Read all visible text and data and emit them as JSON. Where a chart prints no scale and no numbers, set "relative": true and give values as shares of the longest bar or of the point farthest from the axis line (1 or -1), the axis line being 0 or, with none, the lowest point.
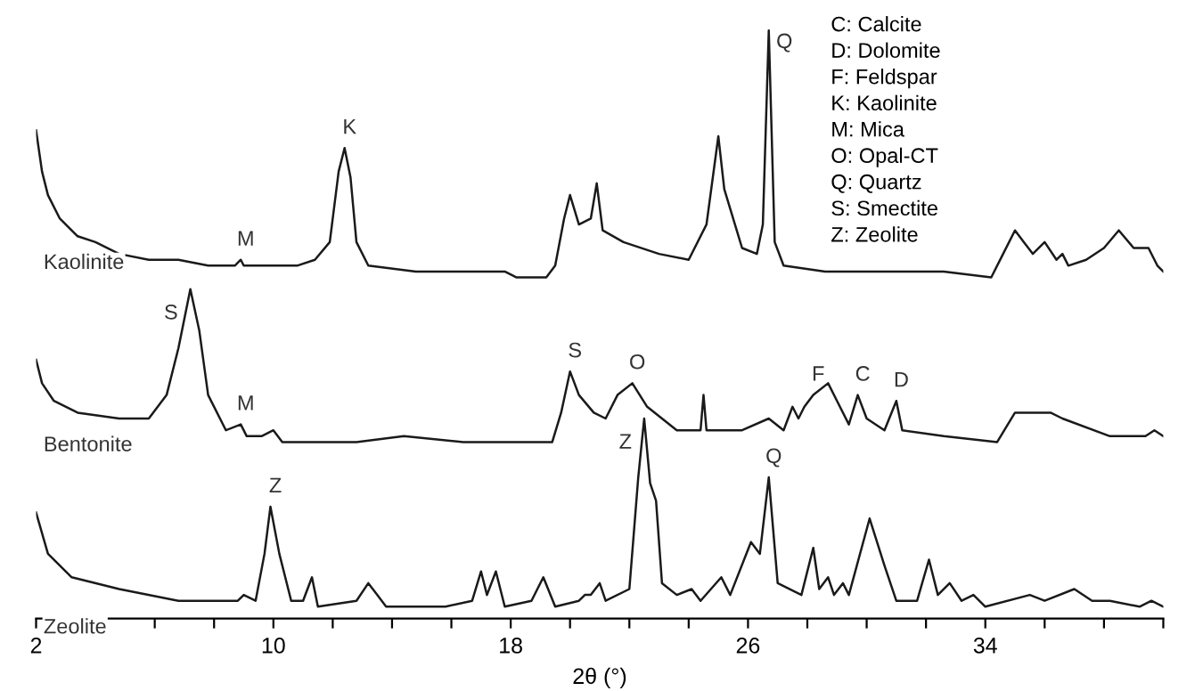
{
  "chart_data": {
    "type": "line",
    "relative": true,
    "xlabel": "2θ (°)",
    "tick_labels": "x",
    "grid": false,
    "legend": false,
    "marker": "none",
    "line_style": "solid",
    "xlim": [
      2,
      40
    ],
    "xticks": [
      2,
      {
        "value": 4,
        "label": null
      },
      {
        "value": 6,
        "label": null
      },
      {
        "value": 8,
        "label": null
      },
      10,
      {
        "value": 12,
        "label": null
      },
      {
        "value": 14,
        "label": null
      },
      {
        "value": 16,
        "label": null
      },
      18,
      {
        "value": 20,
        "label": null
      },
      {
        "value": 22,
        "label": null
      },
      {
        "value": 24,
        "label": null
      },
      26,
      {
        "value": 28,
        "label": null
      },
      {
        "value": 30,
        "label": null
      },
      {
        "value": 32,
        "label": null
      },
      34,
      {
        "value": 36,
        "label": null
      },
      {
        "value": 38,
        "label": null
      },
      {
        "value": 40,
        "label": null
      }
    ],
    "series": [
      {
        "name": "Kaolinite",
        "color": "#1a1a1a",
        "x": [
          2.0,
          2.2,
          2.4,
          2.8,
          3.4,
          4.0,
          4.8,
          5.8,
          6.8,
          7.8,
          8.7,
          8.9,
          9.0,
          9.8,
          10.8,
          11.4,
          11.9,
          12.2,
          12.4,
          12.6,
          12.8,
          13.2,
          14.8,
          16.7,
          17.2,
          17.8,
          18.2,
          19.2,
          19.5,
          19.8,
          20.0,
          20.3,
          20.7,
          20.9,
          21.1,
          21.8,
          23.0,
          24.0,
          24.6,
          25.0,
          25.2,
          25.8,
          26.3,
          26.5,
          26.7,
          26.9,
          27.2,
          28.6,
          30.6,
          32.6,
          34.2,
          34.6,
          35.0,
          35.3,
          35.6,
          36.0,
          36.4,
          36.6,
          36.8,
          37.4,
          38.0,
          38.5,
          39.0,
          39.5,
          39.8,
          40.0
        ],
        "values": [
          0.83,
          0.76,
          0.72,
          0.68,
          0.65,
          0.64,
          0.62,
          0.61,
          0.61,
          0.6,
          0.6,
          0.61,
          0.6,
          0.6,
          0.6,
          0.61,
          0.64,
          0.76,
          0.8,
          0.75,
          0.64,
          0.6,
          0.59,
          0.59,
          0.59,
          0.59,
          0.58,
          0.58,
          0.6,
          0.68,
          0.72,
          0.67,
          0.68,
          0.74,
          0.66,
          0.64,
          0.62,
          0.61,
          0.67,
          0.82,
          0.73,
          0.63,
          0.62,
          0.67,
          1.0,
          0.64,
          0.6,
          0.59,
          0.59,
          0.59,
          0.58,
          0.62,
          0.66,
          0.64,
          0.62,
          0.64,
          0.61,
          0.62,
          0.6,
          0.61,
          0.63,
          0.66,
          0.63,
          0.63,
          0.6,
          0.59
        ]
      },
      {
        "name": "Bentonite",
        "color": "#1a1a1a",
        "x": [
          2.0,
          2.2,
          2.6,
          3.4,
          4.8,
          5.8,
          6.4,
          6.8,
          7.2,
          7.5,
          7.8,
          8.4,
          8.9,
          9.1,
          9.6,
          10.0,
          10.3,
          11.4,
          12.8,
          14.4,
          16.4,
          17.8,
          19.4,
          19.7,
          20.0,
          20.3,
          20.8,
          21.2,
          21.6,
          22.1,
          22.6,
          23.6,
          24.4,
          24.5,
          24.6,
          25.8,
          26.7,
          27.2,
          27.5,
          27.7,
          27.9,
          28.2,
          28.7,
          29.0,
          29.4,
          29.7,
          30.0,
          30.6,
          31.0,
          31.2,
          32.6,
          34.4,
          35.0,
          36.2,
          36.6,
          38.2,
          39.4,
          39.7,
          40.0
        ],
        "values": [
          0.44,
          0.4,
          0.37,
          0.35,
          0.34,
          0.34,
          0.38,
          0.46,
          0.56,
          0.49,
          0.38,
          0.32,
          0.33,
          0.31,
          0.31,
          0.32,
          0.3,
          0.3,
          0.3,
          0.31,
          0.3,
          0.3,
          0.3,
          0.35,
          0.42,
          0.38,
          0.35,
          0.34,
          0.38,
          0.4,
          0.36,
          0.32,
          0.32,
          0.38,
          0.32,
          0.32,
          0.34,
          0.32,
          0.36,
          0.34,
          0.36,
          0.38,
          0.4,
          0.37,
          0.33,
          0.38,
          0.34,
          0.32,
          0.37,
          0.32,
          0.31,
          0.3,
          0.35,
          0.35,
          0.34,
          0.31,
          0.31,
          0.32,
          0.31
        ]
      },
      {
        "name": "Zeolite",
        "color": "#1a1a1a",
        "x": [
          2.0,
          2.4,
          3.2,
          4.8,
          6.8,
          8.8,
          9.0,
          9.4,
          9.7,
          9.9,
          10.2,
          10.6,
          11.0,
          11.3,
          11.5,
          12.8,
          13.2,
          13.5,
          13.8,
          15.8,
          16.7,
          17.0,
          17.2,
          17.5,
          17.8,
          18.7,
          19.1,
          19.5,
          20.3,
          20.5,
          20.7,
          21.0,
          21.2,
          22.0,
          22.3,
          22.5,
          22.7,
          22.9,
          23.1,
          23.6,
          24.1,
          24.4,
          25.1,
          25.4,
          26.1,
          26.4,
          26.7,
          27.0,
          27.8,
          28.2,
          28.4,
          28.7,
          28.9,
          29.2,
          29.4,
          30.1,
          30.6,
          31.0,
          31.7,
          32.1,
          32.4,
          32.8,
          33.2,
          33.6,
          34.0,
          35.5,
          36.0,
          37.0,
          37.6,
          38.2,
          39.2,
          39.6,
          40.0
        ],
        "values": [
          0.18,
          0.11,
          0.07,
          0.05,
          0.03,
          0.03,
          0.04,
          0.03,
          0.11,
          0.19,
          0.11,
          0.03,
          0.03,
          0.07,
          0.02,
          0.03,
          0.06,
          0.04,
          0.02,
          0.02,
          0.03,
          0.08,
          0.04,
          0.08,
          0.02,
          0.03,
          0.07,
          0.02,
          0.03,
          0.04,
          0.04,
          0.06,
          0.03,
          0.05,
          0.24,
          0.34,
          0.23,
          0.2,
          0.06,
          0.04,
          0.05,
          0.03,
          0.07,
          0.04,
          0.13,
          0.11,
          0.24,
          0.06,
          0.04,
          0.12,
          0.05,
          0.07,
          0.04,
          0.06,
          0.04,
          0.17,
          0.09,
          0.03,
          0.03,
          0.1,
          0.04,
          0.06,
          0.03,
          0.04,
          0.02,
          0.04,
          0.03,
          0.05,
          0.03,
          0.03,
          0.02,
          0.03,
          0.02
        ]
      }
    ],
    "annotations": [
      {
        "text": "M",
        "x": 8.9,
        "y": 0.61
      },
      {
        "text": "K",
        "x": 12.4,
        "y": 0.8
      },
      {
        "text": "Q",
        "x": 26.7,
        "y": 1.0
      },
      {
        "text": "S",
        "x": 7.2,
        "y": 0.56
      },
      {
        "text": "M",
        "x": 8.9,
        "y": 0.33
      },
      {
        "text": "S",
        "x": 20.0,
        "y": 0.42
      },
      {
        "text": "O",
        "x": 22.1,
        "y": 0.4
      },
      {
        "text": "F",
        "x": 28.2,
        "y": 0.38
      },
      {
        "text": "C",
        "x": 29.7,
        "y": 0.38
      },
      {
        "text": "D",
        "x": 31.0,
        "y": 0.37
      },
      {
        "text": "Z",
        "x": 9.9,
        "y": 0.19
      },
      {
        "text": "Z",
        "x": 22.5,
        "y": 0.34
      },
      {
        "text": "Q",
        "x": 26.7,
        "y": 0.24
      },
      "C: Calcite",
      "D: Dolomite",
      "F: Feldspar",
      "K: Kaolinite",
      "M: Mica",
      "O: Opal-CT",
      "Q: Quartz",
      "S: Smectite",
      "Z: Zeolite"
    ]
  }
}
